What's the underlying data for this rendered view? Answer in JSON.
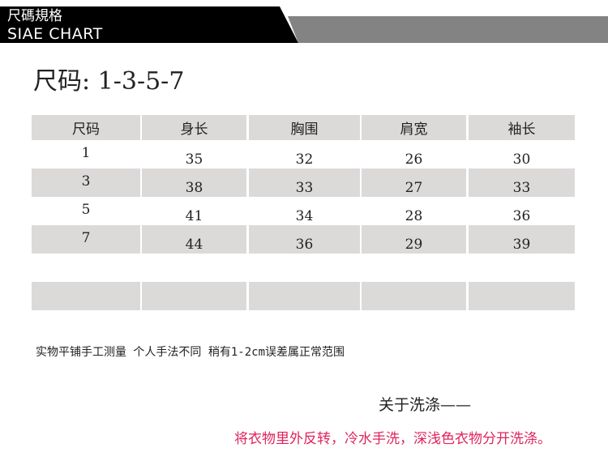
{
  "banner": {
    "title_cn": "尺碼規格",
    "title_en": "SIAE CHART"
  },
  "size_title": "尺码:  1-3-5-7",
  "table": {
    "headers": [
      "尺码",
      "身长",
      "胸围",
      "肩宽",
      "袖长"
    ],
    "rows": [
      [
        "1",
        "35",
        "32",
        "26",
        "30"
      ],
      [
        "3",
        "38",
        "33",
        "27",
        "33"
      ],
      [
        "5",
        "41",
        "34",
        "28",
        "36"
      ],
      [
        "7",
        "44",
        "36",
        "29",
        "39"
      ],
      [
        "",
        "",
        "",
        "",
        ""
      ],
      [
        "",
        "",
        "",
        "",
        ""
      ]
    ]
  },
  "note": "实物平铺手工测量 个人手法不同 稍有1-2cm误差属正常范围",
  "wash": {
    "title": "关于洗涤——",
    "text": "将衣物里外反转，冷水手洗，深浅色衣物分开洗涤。",
    "text_color": "#e0245e"
  }
}
